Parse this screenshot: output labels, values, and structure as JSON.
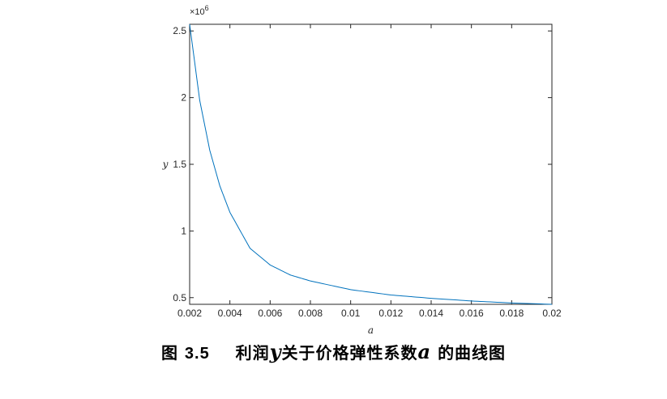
{
  "chart_data": {
    "type": "line",
    "xlabel": "a",
    "ylabel": "y",
    "y_exponent_multiplier": "×10",
    "y_exponent_power": "6",
    "xlim": [
      0.002,
      0.02
    ],
    "ylim": [
      0.45,
      2.55
    ],
    "x_ticks": [
      0.002,
      0.004,
      0.006,
      0.008,
      0.01,
      0.012,
      0.014,
      0.016,
      0.018,
      0.02
    ],
    "x_tick_labels": [
      "0.002",
      "0.004",
      "0.006",
      "0.008",
      "0.01",
      "0.012",
      "0.014",
      "0.016",
      "0.018",
      "0.02"
    ],
    "y_ticks": [
      0.5,
      1,
      1.5,
      2,
      2.5
    ],
    "y_tick_labels": [
      "0.5",
      "1",
      "1.5",
      "2",
      "2.5"
    ],
    "series": [
      {
        "color": "#0072BD",
        "x": [
          0.002,
          0.0025,
          0.003,
          0.0035,
          0.004,
          0.005,
          0.006,
          0.007,
          0.008,
          0.01,
          0.012,
          0.014,
          0.016,
          0.018,
          0.02
        ],
        "y": [
          2.55,
          1.98,
          1.605,
          1.338,
          1.14,
          0.87,
          0.745,
          0.67,
          0.625,
          0.56,
          0.52,
          0.495,
          0.475,
          0.46,
          0.45
        ]
      }
    ],
    "grid": false
  },
  "caption": {
    "figure_label": "图",
    "figure_number": "3.5",
    "text_before_y": "利润",
    "var_y": "y",
    "text_middle": "关于价格弹性系数",
    "var_a": "a",
    "text_after": "的曲线图"
  }
}
